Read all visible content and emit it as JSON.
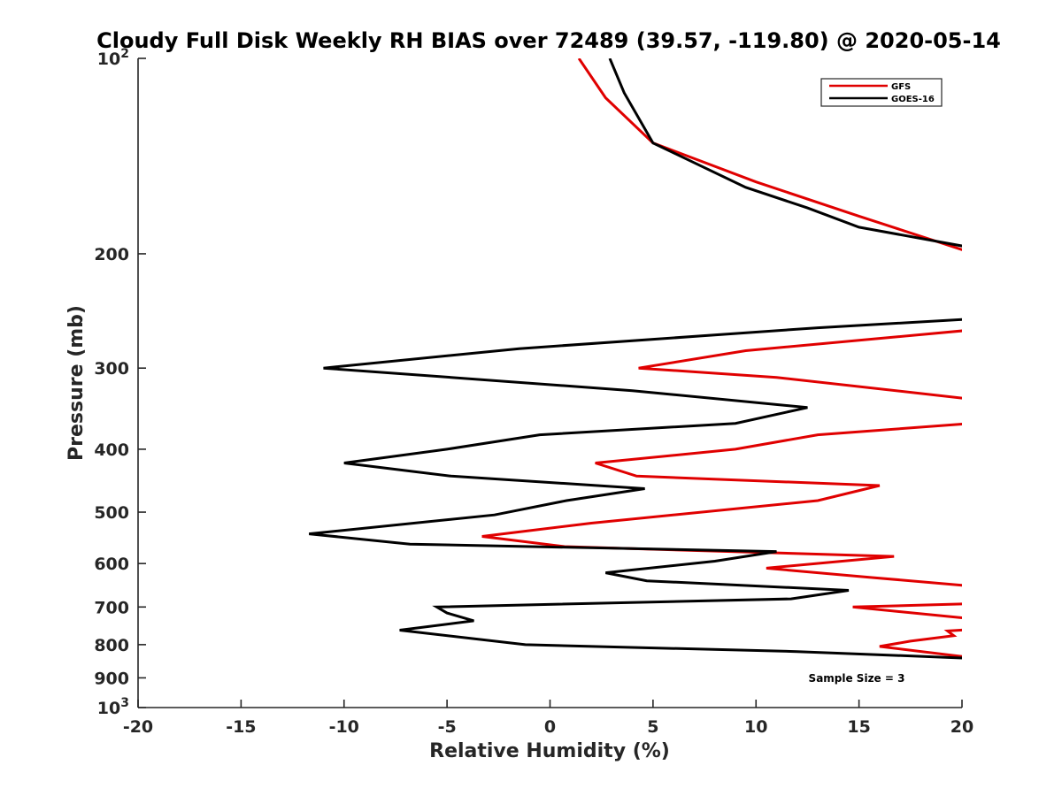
{
  "chart_data": {
    "type": "line",
    "title": "Cloudy Full Disk Weekly RH BIAS over 72489 (39.57, -119.80) @ 2020-05-14",
    "xlabel": "Relative Humidity (%)",
    "ylabel": "Pressure (mb)",
    "xlim": [
      -20,
      20
    ],
    "ylim": [
      100,
      1000
    ],
    "y_scale": "log",
    "y_reversed": true,
    "grid": false,
    "legend_position": "top-right",
    "x_ticks": [
      "-20",
      "-15",
      "-10",
      "-5",
      "0",
      "5",
      "10",
      "15",
      "20"
    ],
    "y_ticks": [
      {
        "value": 100,
        "base": "10",
        "exp": "2"
      },
      {
        "value": 200,
        "label": "200"
      },
      {
        "value": 300,
        "label": "300"
      },
      {
        "value": 400,
        "label": "400"
      },
      {
        "value": 500,
        "label": "500"
      },
      {
        "value": 600,
        "label": "600"
      },
      {
        "value": 700,
        "label": "700"
      },
      {
        "value": 800,
        "label": "800"
      },
      {
        "value": 900,
        "label": "900"
      },
      {
        "value": 1000,
        "base": "10",
        "exp": "3"
      }
    ],
    "annotation": "Sample Size = 3",
    "series": [
      {
        "name": "GFS",
        "color": "#e00000",
        "points": [
          [
            1.4,
            100
          ],
          [
            2.7,
            115
          ],
          [
            5.0,
            135
          ],
          [
            10.0,
            155
          ],
          [
            15.0,
            175
          ],
          [
            20.2,
            198
          ],
          [
            null,
            null
          ],
          [
            20.5,
            262
          ],
          [
            9.5,
            282
          ],
          [
            4.3,
            300
          ],
          [
            11.0,
            310
          ],
          [
            20.5,
            335
          ],
          [
            null,
            null
          ],
          [
            20.5,
            365
          ],
          [
            13.0,
            380
          ],
          [
            9.0,
            400
          ],
          [
            2.2,
            420
          ],
          [
            4.2,
            440
          ],
          [
            16.0,
            455
          ],
          [
            13.0,
            480
          ],
          [
            2.0,
            520
          ],
          [
            -3.3,
            545
          ],
          [
            0.7,
            565
          ],
          [
            16.7,
            585
          ],
          [
            10.5,
            610
          ],
          [
            15.5,
            630
          ],
          [
            20.5,
            650
          ],
          [
            null,
            null
          ],
          [
            20.5,
            692
          ],
          [
            14.7,
            700
          ],
          [
            20.5,
            730
          ],
          [
            null,
            null
          ],
          [
            20.5,
            758
          ],
          [
            19.3,
            762
          ],
          [
            19.6,
            775
          ],
          [
            17.5,
            790
          ],
          [
            16.0,
            805
          ],
          [
            20.5,
            838
          ]
        ]
      },
      {
        "name": "GOES-16",
        "color": "#000000",
        "points": [
          [
            2.9,
            100
          ],
          [
            3.6,
            113
          ],
          [
            5.0,
            135
          ],
          [
            9.5,
            158
          ],
          [
            12.5,
            170
          ],
          [
            15.0,
            182
          ],
          [
            20.2,
            195
          ],
          [
            null,
            null
          ],
          [
            20.5,
            252
          ],
          [
            13.0,
            260
          ],
          [
            -1.5,
            280
          ],
          [
            -11.0,
            300
          ],
          [
            4.0,
            325
          ],
          [
            12.5,
            345
          ],
          [
            9.0,
            365
          ],
          [
            -0.5,
            380
          ],
          [
            -5.0,
            400
          ],
          [
            -10.0,
            420
          ],
          [
            -4.8,
            440
          ],
          [
            4.6,
            460
          ],
          [
            0.8,
            480
          ],
          [
            -2.7,
            505
          ],
          [
            -11.7,
            540
          ],
          [
            -6.8,
            560
          ],
          [
            11.0,
            575
          ],
          [
            8.0,
            595
          ],
          [
            2.7,
            620
          ],
          [
            4.7,
            638
          ],
          [
            14.5,
            660
          ],
          [
            11.7,
            680
          ],
          [
            -5.5,
            700
          ],
          [
            -5.0,
            715
          ],
          [
            -3.7,
            735
          ],
          [
            -7.3,
            760
          ],
          [
            -1.2,
            800
          ],
          [
            12.0,
            820
          ],
          [
            20.5,
            840
          ]
        ]
      }
    ]
  }
}
